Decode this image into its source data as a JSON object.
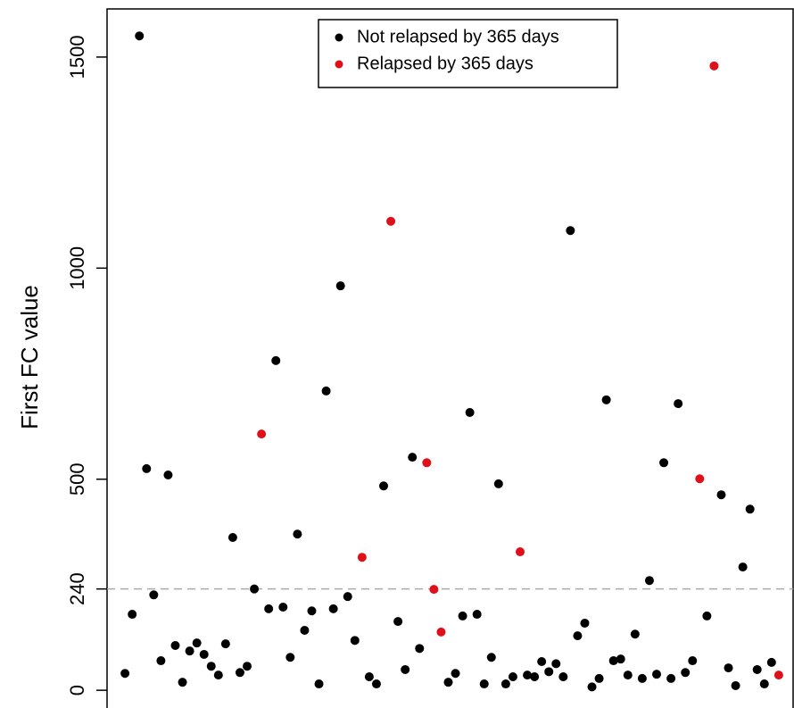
{
  "chart_data": {
    "type": "scatter",
    "y_label": "First FC value",
    "xlim": [
      -1.5,
      94
    ],
    "ylim": [
      -42,
      1614
    ],
    "yticks": [
      0,
      240,
      500,
      1000,
      1500
    ],
    "threshold": 240,
    "threshold_color": "#aaaaaa",
    "series": [
      {
        "name": "Not relapsed by 365 days",
        "color": "#000000",
        "x": [
          1,
          2,
          3,
          4,
          5,
          6,
          7,
          8,
          9,
          10,
          11,
          12,
          13,
          14,
          15,
          16,
          17,
          18,
          19,
          21,
          22,
          23,
          24,
          25,
          26,
          27,
          28,
          29,
          30,
          31,
          32,
          33,
          35,
          36,
          37,
          39,
          40,
          41,
          42,
          46,
          47,
          48,
          49,
          50,
          51,
          52,
          53,
          54,
          55,
          57,
          58,
          59,
          60,
          61,
          62,
          63,
          64,
          65,
          66,
          67,
          68,
          69,
          70,
          71,
          72,
          73,
          74,
          75,
          76,
          77,
          78,
          79,
          80,
          82,
          84,
          85,
          86,
          87,
          88,
          89,
          90,
          91
        ],
        "values": [
          40,
          180,
          1550,
          525,
          226,
          70,
          510,
          106,
          19,
          93,
          112,
          85,
          57,
          36,
          110,
          362,
          42,
          57,
          240,
          193,
          781,
          197,
          78,
          370,
          142,
          188,
          15,
          709,
          193,
          958,
          222,
          118,
          32,
          15,
          484,
          163,
          49,
          552,
          99,
          19,
          40,
          176,
          658,
          180,
          15,
          78,
          489,
          15,
          32,
          36,
          32,
          68,
          44,
          63,
          32,
          1089,
          129,
          159,
          8,
          28,
          688,
          70,
          74,
          36,
          133,
          28,
          260,
          38,
          539,
          28,
          679,
          42,
          70,
          176,
          463,
          53,
          11,
          292,
          429,
          49,
          15,
          66
        ]
      },
      {
        "name": "Relapsed by 365 days",
        "color": "#e0101a",
        "x": [
          20,
          34,
          38,
          43,
          44,
          45,
          56,
          81,
          83,
          92
        ],
        "values": [
          607,
          315,
          1111,
          539,
          239,
          138,
          328,
          501,
          1479,
          36
        ]
      }
    ]
  }
}
